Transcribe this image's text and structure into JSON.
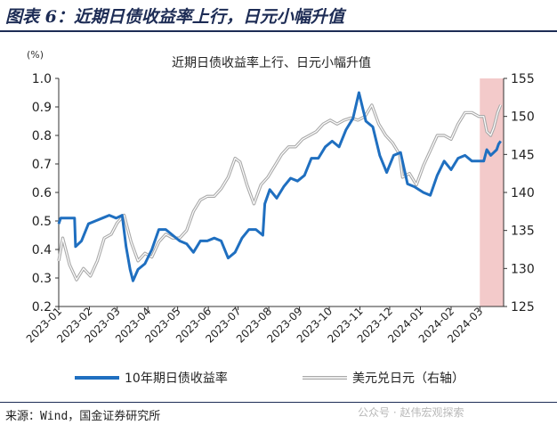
{
  "header": {
    "title": "图表 6：近期日债收益率上行，日元小幅升值"
  },
  "footer": {
    "source": "来源：Wind，国金证券研究所",
    "watermark": "公众号 · 赵伟宏观探索"
  },
  "colors": {
    "header": "#1d2c55",
    "jgb": "#1f6fc0",
    "usdjpy_outer": "#a9a9a9",
    "usdjpy_inner": "#ffffff",
    "highlight": "#f2c4c4"
  },
  "chart_data": {
    "type": "line",
    "title": "近期日债收益率上行、日元小幅升值",
    "y_left_unit": "(%)",
    "y_left_range": [
      0.2,
      1.0
    ],
    "y_left_ticks": [
      "1.0",
      "0.9",
      "0.8",
      "0.7",
      "0.6",
      "0.5",
      "0.4",
      "0.3",
      "0.2"
    ],
    "y_right_range": [
      125,
      155
    ],
    "y_right_ticks": [
      "155",
      "150",
      "145",
      "140",
      "135",
      "130",
      "125"
    ],
    "x_range": [
      "2023-01-01",
      "2024-03-25"
    ],
    "x_ticks": [
      "2023-01",
      "2023-02",
      "2023-03",
      "2023-04",
      "2023-05",
      "2023-06",
      "2023-07",
      "2023-08",
      "2023-09",
      "2023-10",
      "2023-11",
      "2023-12",
      "2024-01",
      "2024-02",
      "2024-03"
    ],
    "highlight_range": [
      "2024-03-01",
      "2024-03-25"
    ],
    "legend_position": "bottom",
    "series": [
      {
        "name": "10年期日债收益率",
        "axis": "left",
        "points": [
          [
            "2023-01-01",
            0.49
          ],
          [
            "2023-01-03",
            0.51
          ],
          [
            "2023-01-10",
            0.51
          ],
          [
            "2023-01-17",
            0.51
          ],
          [
            "2023-01-18",
            0.41
          ],
          [
            "2023-01-24",
            0.43
          ],
          [
            "2023-01-31",
            0.49
          ],
          [
            "2023-02-07",
            0.5
          ],
          [
            "2023-02-14",
            0.51
          ],
          [
            "2023-02-21",
            0.52
          ],
          [
            "2023-02-28",
            0.51
          ],
          [
            "2023-03-06",
            0.52
          ],
          [
            "2023-03-10",
            0.41
          ],
          [
            "2023-03-14",
            0.33
          ],
          [
            "2023-03-17",
            0.29
          ],
          [
            "2023-03-22",
            0.33
          ],
          [
            "2023-03-29",
            0.35
          ],
          [
            "2023-04-05",
            0.4
          ],
          [
            "2023-04-12",
            0.47
          ],
          [
            "2023-04-19",
            0.47
          ],
          [
            "2023-04-26",
            0.45
          ],
          [
            "2023-05-03",
            0.43
          ],
          [
            "2023-05-10",
            0.42
          ],
          [
            "2023-05-17",
            0.39
          ],
          [
            "2023-05-24",
            0.43
          ],
          [
            "2023-05-31",
            0.43
          ],
          [
            "2023-06-07",
            0.44
          ],
          [
            "2023-06-14",
            0.43
          ],
          [
            "2023-06-21",
            0.37
          ],
          [
            "2023-06-28",
            0.39
          ],
          [
            "2023-07-05",
            0.44
          ],
          [
            "2023-07-12",
            0.47
          ],
          [
            "2023-07-19",
            0.47
          ],
          [
            "2023-07-26",
            0.45
          ],
          [
            "2023-07-28",
            0.56
          ],
          [
            "2023-08-02",
            0.61
          ],
          [
            "2023-08-09",
            0.58
          ],
          [
            "2023-08-16",
            0.62
          ],
          [
            "2023-08-23",
            0.65
          ],
          [
            "2023-08-30",
            0.64
          ],
          [
            "2023-09-06",
            0.66
          ],
          [
            "2023-09-13",
            0.72
          ],
          [
            "2023-09-20",
            0.72
          ],
          [
            "2023-09-27",
            0.76
          ],
          [
            "2023-10-04",
            0.78
          ],
          [
            "2023-10-11",
            0.76
          ],
          [
            "2023-10-18",
            0.82
          ],
          [
            "2023-10-25",
            0.86
          ],
          [
            "2023-10-31",
            0.95
          ],
          [
            "2023-11-07",
            0.85
          ],
          [
            "2023-11-14",
            0.83
          ],
          [
            "2023-11-21",
            0.73
          ],
          [
            "2023-11-28",
            0.67
          ],
          [
            "2023-12-05",
            0.73
          ],
          [
            "2023-12-12",
            0.74
          ],
          [
            "2023-12-19",
            0.63
          ],
          [
            "2023-12-26",
            0.62
          ],
          [
            "2024-01-04",
            0.6
          ],
          [
            "2024-01-11",
            0.59
          ],
          [
            "2024-01-18",
            0.66
          ],
          [
            "2024-01-25",
            0.71
          ],
          [
            "2024-02-01",
            0.68
          ],
          [
            "2024-02-08",
            0.72
          ],
          [
            "2024-02-15",
            0.73
          ],
          [
            "2024-02-22",
            0.71
          ],
          [
            "2024-02-29",
            0.71
          ],
          [
            "2024-03-05",
            0.71
          ],
          [
            "2024-03-08",
            0.75
          ],
          [
            "2024-03-12",
            0.73
          ],
          [
            "2024-03-15",
            0.74
          ],
          [
            "2024-03-18",
            0.75
          ],
          [
            "2024-03-20",
            0.77
          ],
          [
            "2024-03-22",
            0.78
          ]
        ]
      },
      {
        "name": "美元兑日元（右轴）",
        "axis": "right",
        "points": [
          [
            "2023-01-01",
            131.0
          ],
          [
            "2023-01-05",
            134.0
          ],
          [
            "2023-01-12",
            130.5
          ],
          [
            "2023-01-19",
            128.5
          ],
          [
            "2023-01-26",
            130.0
          ],
          [
            "2023-02-02",
            129.0
          ],
          [
            "2023-02-09",
            131.0
          ],
          [
            "2023-02-16",
            134.0
          ],
          [
            "2023-02-23",
            134.5
          ],
          [
            "2023-03-01",
            136.0
          ],
          [
            "2023-03-08",
            137.0
          ],
          [
            "2023-03-15",
            133.5
          ],
          [
            "2023-03-22",
            131.0
          ],
          [
            "2023-03-29",
            132.0
          ],
          [
            "2023-04-05",
            131.5
          ],
          [
            "2023-04-12",
            133.5
          ],
          [
            "2023-04-19",
            134.5
          ],
          [
            "2023-04-26",
            134.0
          ],
          [
            "2023-05-03",
            134.0
          ],
          [
            "2023-05-10",
            135.0
          ],
          [
            "2023-05-17",
            137.5
          ],
          [
            "2023-05-24",
            139.0
          ],
          [
            "2023-05-31",
            139.5
          ],
          [
            "2023-06-07",
            139.5
          ],
          [
            "2023-06-14",
            140.5
          ],
          [
            "2023-06-21",
            142.0
          ],
          [
            "2023-06-28",
            144.5
          ],
          [
            "2023-07-03",
            144.0
          ],
          [
            "2023-07-10",
            141.0
          ],
          [
            "2023-07-17",
            138.5
          ],
          [
            "2023-07-24",
            141.0
          ],
          [
            "2023-07-31",
            142.0
          ],
          [
            "2023-08-07",
            143.5
          ],
          [
            "2023-08-14",
            145.0
          ],
          [
            "2023-08-21",
            146.0
          ],
          [
            "2023-08-28",
            146.0
          ],
          [
            "2023-09-04",
            147.0
          ],
          [
            "2023-09-11",
            147.5
          ],
          [
            "2023-09-18",
            148.0
          ],
          [
            "2023-09-25",
            149.0
          ],
          [
            "2023-10-02",
            149.5
          ],
          [
            "2023-10-09",
            149.0
          ],
          [
            "2023-10-16",
            149.5
          ],
          [
            "2023-10-23",
            149.8
          ],
          [
            "2023-10-30",
            149.5
          ],
          [
            "2023-11-06",
            150.0
          ],
          [
            "2023-11-13",
            151.5
          ],
          [
            "2023-11-20",
            149.0
          ],
          [
            "2023-11-27",
            147.5
          ],
          [
            "2023-12-04",
            146.5
          ],
          [
            "2023-12-11",
            145.0
          ],
          [
            "2023-12-14",
            142.0
          ],
          [
            "2023-12-21",
            142.5
          ],
          [
            "2023-12-28",
            141.0
          ],
          [
            "2024-01-04",
            143.5
          ],
          [
            "2024-01-11",
            145.5
          ],
          [
            "2024-01-18",
            147.5
          ],
          [
            "2024-01-25",
            147.5
          ],
          [
            "2024-02-01",
            147.0
          ],
          [
            "2024-02-08",
            149.0
          ],
          [
            "2024-02-15",
            150.5
          ],
          [
            "2024-02-22",
            150.5
          ],
          [
            "2024-02-29",
            150.0
          ],
          [
            "2024-03-05",
            150.0
          ],
          [
            "2024-03-08",
            148.0
          ],
          [
            "2024-03-12",
            147.5
          ],
          [
            "2024-03-15",
            148.5
          ],
          [
            "2024-03-19",
            150.5
          ],
          [
            "2024-03-22",
            151.5
          ]
        ]
      }
    ]
  }
}
